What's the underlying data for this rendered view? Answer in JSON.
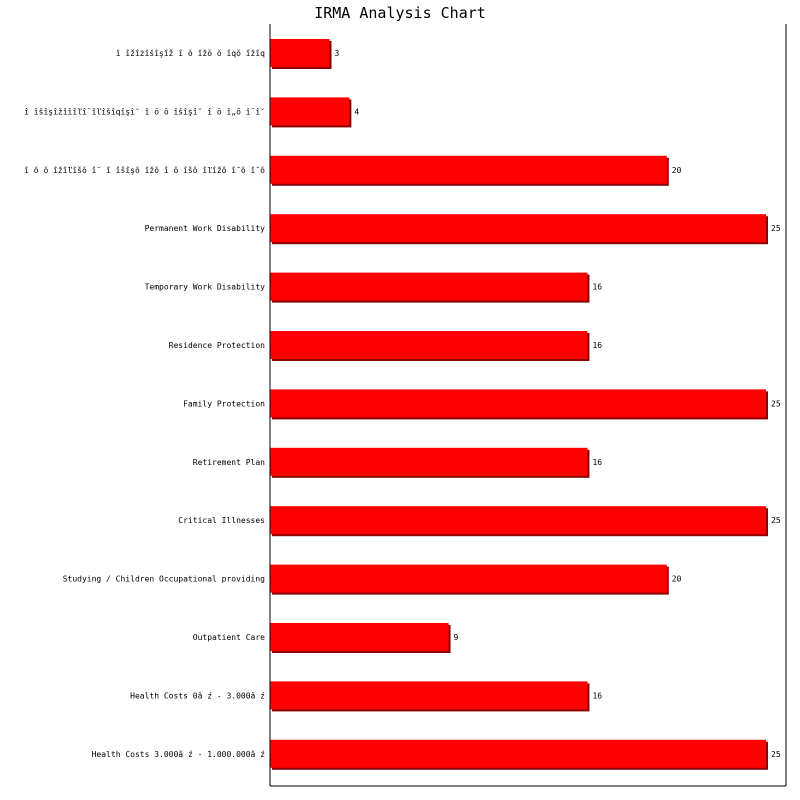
{
  "chart_data": {
    "type": "bar",
    "orientation": "horizontal",
    "title": "IRMA Analysis Chart",
    "xlabel": "",
    "ylabel": "",
    "xlim": [
      0,
      25
    ],
    "grid": false,
    "legend": "none",
    "categories": [
      "î îžîżîšîşîž î ŏ îžŏ ŏ îqŏ îžîq",
      "î îšîşîžîîîľî¨îľîšîqîşî˘ î ŏ ŏ îšîşî˘ î ŏ î„ŏ î¨î˘",
      "î ŏ ŏ îžîľîšŏ î˘ î îšîşŏ îžŏ  î ŏ îšŏ îľîžŏ î˘ŏ î˘ŏ",
      "Permanent Work Disability",
      "Temporary Work Disability",
      "Residence Protection",
      "Family Protection",
      "Retirement Plan",
      "Critical Illnesses",
      "Studying / Children Occupational providing",
      "Outpatient Care",
      "Health Costs 0â ź - 3.000â ź",
      "Health Costs 3.000â ź - 1.000.000â ź"
    ],
    "values": [
      3,
      4,
      20,
      25,
      16,
      16,
      25,
      16,
      25,
      20,
      9,
      16,
      25
    ],
    "bar_color": "#ff0000",
    "bar_edge_color": "#8b0000"
  }
}
